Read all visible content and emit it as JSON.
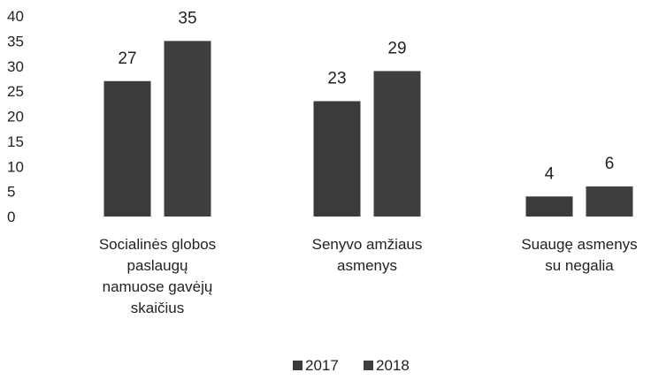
{
  "chart_data": {
    "type": "bar",
    "categories": [
      "Socialinės globos paslaugų namuose gavėjų skaičius",
      "Senyvo amžiaus asmenys",
      "Suaugę asmenys su negalia"
    ],
    "category_lines": [
      [
        "Socialinės globos",
        "paslaugų",
        "namuose gavėjų",
        "skaičius"
      ],
      [
        "Senyvo amžiaus",
        "asmenys"
      ],
      [
        "Suaugę asmenys",
        "su negalia"
      ]
    ],
    "series": [
      {
        "name": "2017",
        "values": [
          27,
          23,
          4
        ],
        "color": "#3b3b3b"
      },
      {
        "name": "2018",
        "values": [
          35,
          29,
          6
        ],
        "color": "#3f3f3f"
      }
    ],
    "ylim": [
      0,
      40
    ],
    "yticks": [
      0,
      5,
      10,
      15,
      20,
      25,
      30,
      35,
      40
    ],
    "grid": false,
    "legend": "bottom"
  }
}
